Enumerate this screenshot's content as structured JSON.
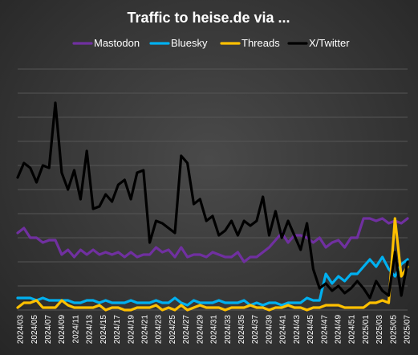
{
  "chart_data": {
    "type": "line",
    "title": "Traffic to heise.de via ...",
    "xlabel": "",
    "ylabel": "",
    "legend_position": "top",
    "grid": "horizontal",
    "ylim": [
      0,
      100
    ],
    "x_tick_labels": [
      "2024/03",
      "2024/05",
      "2024/07",
      "2024/09",
      "2024/11",
      "2024/13",
      "2024/15",
      "2024/17",
      "2024/19",
      "2024/21",
      "2024/23",
      "2024/25",
      "2024/27",
      "2024/29",
      "2024/31",
      "2024/33",
      "2024/35",
      "2024/37",
      "2024/39",
      "2024/41",
      "2024/43",
      "2024/45",
      "2024/47",
      "2024/49",
      "2024/51",
      "2025/01",
      "2025/03",
      "2025/05",
      "2025/07"
    ],
    "series": [
      {
        "name": "Mastodon",
        "color": "#7030A0",
        "values": [
          32,
          34,
          30,
          30,
          28,
          29,
          29,
          23,
          25,
          22,
          25,
          23,
          25,
          23,
          24,
          23,
          24,
          22,
          24,
          22,
          23,
          23,
          26,
          24,
          25,
          22,
          26,
          22,
          23,
          23,
          22,
          24,
          23,
          22,
          22,
          24,
          20,
          22,
          22,
          24,
          26,
          29,
          32,
          28,
          31,
          31,
          30,
          28,
          30,
          26,
          28,
          29,
          26,
          30,
          30,
          38,
          38,
          37,
          38,
          36,
          37,
          36,
          38
        ]
      },
      {
        "name": "Bluesky",
        "color": "#00B0F0",
        "values": [
          5,
          5,
          5,
          4,
          5,
          4,
          4,
          4,
          4,
          3,
          3,
          4,
          4,
          3,
          4,
          3,
          3,
          3,
          4,
          3,
          3,
          3,
          4,
          3,
          3,
          5,
          3,
          2,
          4,
          3,
          3,
          3,
          4,
          3,
          3,
          3,
          4,
          2,
          3,
          2,
          3,
          3,
          2,
          3,
          3,
          3,
          5,
          4,
          4,
          15,
          11,
          14,
          12,
          15,
          15,
          18,
          21,
          18,
          22,
          17,
          14,
          19,
          21
        ]
      },
      {
        "name": "Threads",
        "color": "#FFC000",
        "values": [
          1,
          3,
          3,
          4,
          1,
          1,
          1,
          4,
          2,
          1,
          1,
          1,
          1,
          2,
          0,
          1,
          1,
          0,
          0,
          1,
          1,
          1,
          2,
          0,
          1,
          0,
          2,
          0,
          1,
          2,
          1,
          1,
          1,
          0,
          1,
          1,
          1,
          2,
          1,
          1,
          0,
          1,
          1,
          2,
          1,
          1,
          0,
          1,
          1,
          2,
          2,
          2,
          1,
          1,
          1,
          1,
          3,
          3,
          4,
          3,
          38,
          14,
          18
        ]
      },
      {
        "name": "X/Twitter",
        "color": "#000000",
        "values": [
          55,
          61,
          59,
          53,
          60,
          59,
          86,
          57,
          50,
          58,
          46,
          66,
          42,
          43,
          48,
          45,
          52,
          54,
          46,
          57,
          58,
          28,
          37,
          36,
          34,
          32,
          64,
          61,
          44,
          46,
          37,
          39,
          31,
          33,
          37,
          31,
          37,
          35,
          37,
          47,
          31,
          41,
          30,
          37,
          31,
          25,
          36,
          17,
          9,
          11,
          8,
          10,
          7,
          9,
          12,
          9,
          5,
          12,
          8,
          6,
          24,
          6,
          20
        ]
      }
    ]
  }
}
